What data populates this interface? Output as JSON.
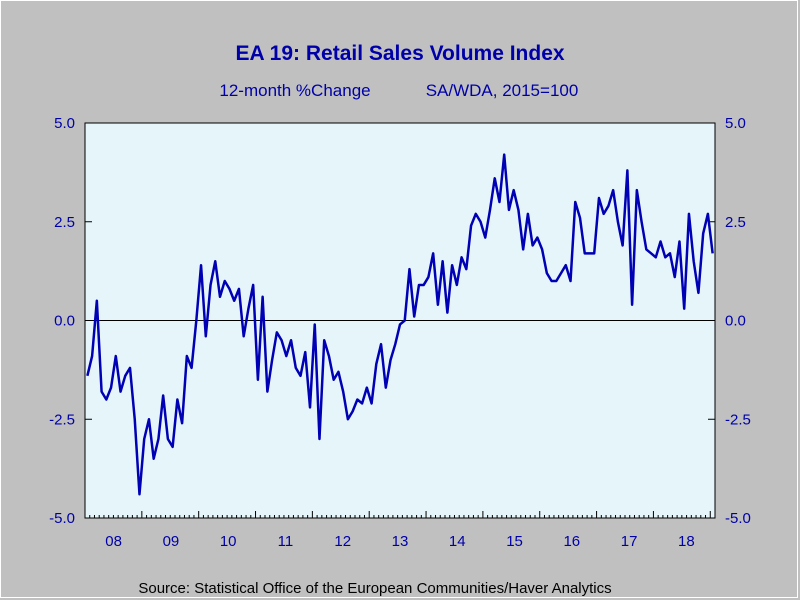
{
  "chart_data": {
    "type": "line",
    "title": "EA 19: Retail Sales Volume Index",
    "subtitle_left": "12-month %Change",
    "subtitle_right": "SA/WDA, 2015=100",
    "source": "Source:  Statistical Office of the European Communities/Haver Analytics",
    "ylim": [
      -5.0,
      5.0
    ],
    "yticks": [
      "5.0",
      "2.5",
      "0.0",
      "-2.5",
      "-5.0"
    ],
    "ytick_values": [
      5.0,
      2.5,
      0.0,
      -2.5,
      -5.0
    ],
    "year_labels": [
      "08",
      "09",
      "10",
      "11",
      "12",
      "13",
      "14",
      "15",
      "16",
      "17",
      "18"
    ],
    "x_start": "2008-01",
    "x_end": "2018-12",
    "colors": {
      "line": "#0000b4",
      "background": "#c0c0c0",
      "plot_bg": "#e6f5fa",
      "text": "#0000a8",
      "zero_line": "#000000"
    },
    "series": [
      {
        "values": [
          -1.4,
          -0.9,
          0.5,
          -1.8,
          -2.0,
          -1.7,
          -0.9,
          -1.8,
          -1.4,
          -1.2,
          -2.5,
          -4.4,
          -3.0,
          -2.5,
          -3.5,
          -3.0,
          -1.9,
          -3.0,
          -3.2,
          -2.0,
          -2.6,
          -0.9,
          -1.2,
          0.0,
          1.4,
          -0.4,
          0.9,
          1.5,
          0.6,
          1.0,
          0.8,
          0.5,
          0.8,
          -0.4,
          0.3,
          0.9,
          -1.5,
          0.6,
          -1.8,
          -1.0,
          -0.3,
          -0.5,
          -0.9,
          -0.5,
          -1.2,
          -1.4,
          -0.8,
          -2.2,
          -0.1,
          -3.0,
          -0.5,
          -0.9,
          -1.5,
          -1.3,
          -1.8,
          -2.5,
          -2.3,
          -2.0,
          -2.1,
          -1.7,
          -2.1,
          -1.1,
          -0.6,
          -1.7,
          -1.0,
          -0.6,
          -0.1,
          0.0,
          1.3,
          0.1,
          0.9,
          0.9,
          1.1,
          1.7,
          0.4,
          1.5,
          0.2,
          1.4,
          0.9,
          1.6,
          1.3,
          2.4,
          2.7,
          2.5,
          2.1,
          2.8,
          3.6,
          3.0,
          4.2,
          2.8,
          3.3,
          2.8,
          1.8,
          2.7,
          1.9,
          2.1,
          1.8,
          1.2,
          1.0,
          1.0,
          1.2,
          1.4,
          1.0,
          3.0,
          2.6,
          1.7,
          1.7,
          1.7,
          3.1,
          2.7,
          2.9,
          3.3,
          2.5,
          1.9,
          3.8,
          0.4,
          3.3,
          2.5,
          1.8,
          1.7,
          1.6,
          2.0,
          1.6,
          1.7,
          1.1,
          2.0,
          0.3,
          2.7,
          1.5,
          0.7,
          2.2,
          2.7,
          1.7
        ]
      }
    ]
  }
}
